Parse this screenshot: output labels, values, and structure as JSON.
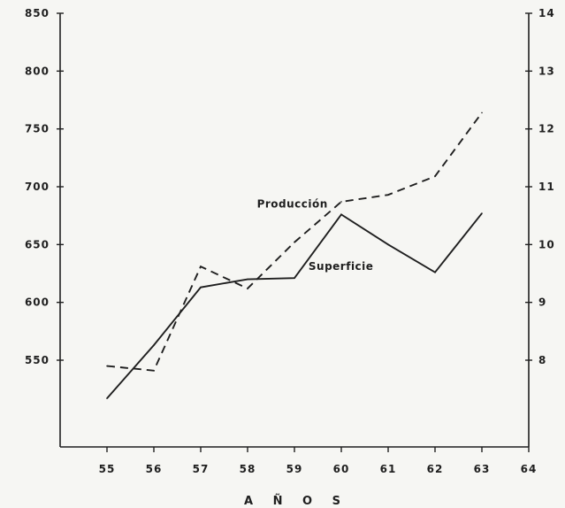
{
  "chart_data": {
    "type": "line",
    "xlabel": "A Ñ O S",
    "x": [
      55,
      56,
      57,
      58,
      59,
      60,
      61,
      62,
      63
    ],
    "x_ticks": [
      "55",
      "56",
      "57",
      "58",
      "59",
      "60",
      "61",
      "62",
      "63",
      "64"
    ],
    "xlim": [
      54,
      64
    ],
    "ylim_left": [
      475,
      850
    ],
    "left_ticks": [
      "850",
      "800",
      "750",
      "700",
      "650",
      "600",
      "550"
    ],
    "left_tick_values": [
      850,
      800,
      750,
      700,
      650,
      600,
      550
    ],
    "right_ticks": [
      "14",
      "13",
      "12",
      "11",
      "10",
      "9",
      "8"
    ],
    "right_tick_values": [
      850,
      800,
      750,
      700,
      650,
      600,
      550
    ],
    "series": [
      {
        "name": "Superficie",
        "style": "solid",
        "values": [
          517,
          563,
          613,
          620,
          621,
          676,
          650,
          626,
          677
        ]
      },
      {
        "name": "Producción",
        "style": "dashed",
        "values": [
          545,
          541,
          631,
          612,
          652,
          687,
          693,
          709,
          764
        ]
      }
    ],
    "annotations": [
      {
        "text": "Producción",
        "x": 58.2,
        "y": 682
      },
      {
        "text": "Superficie",
        "x": 59.3,
        "y": 628
      }
    ],
    "grid": false,
    "legend": "none"
  },
  "colors": {
    "ink": "#1f1f1f",
    "background": "#f6f6f3"
  }
}
